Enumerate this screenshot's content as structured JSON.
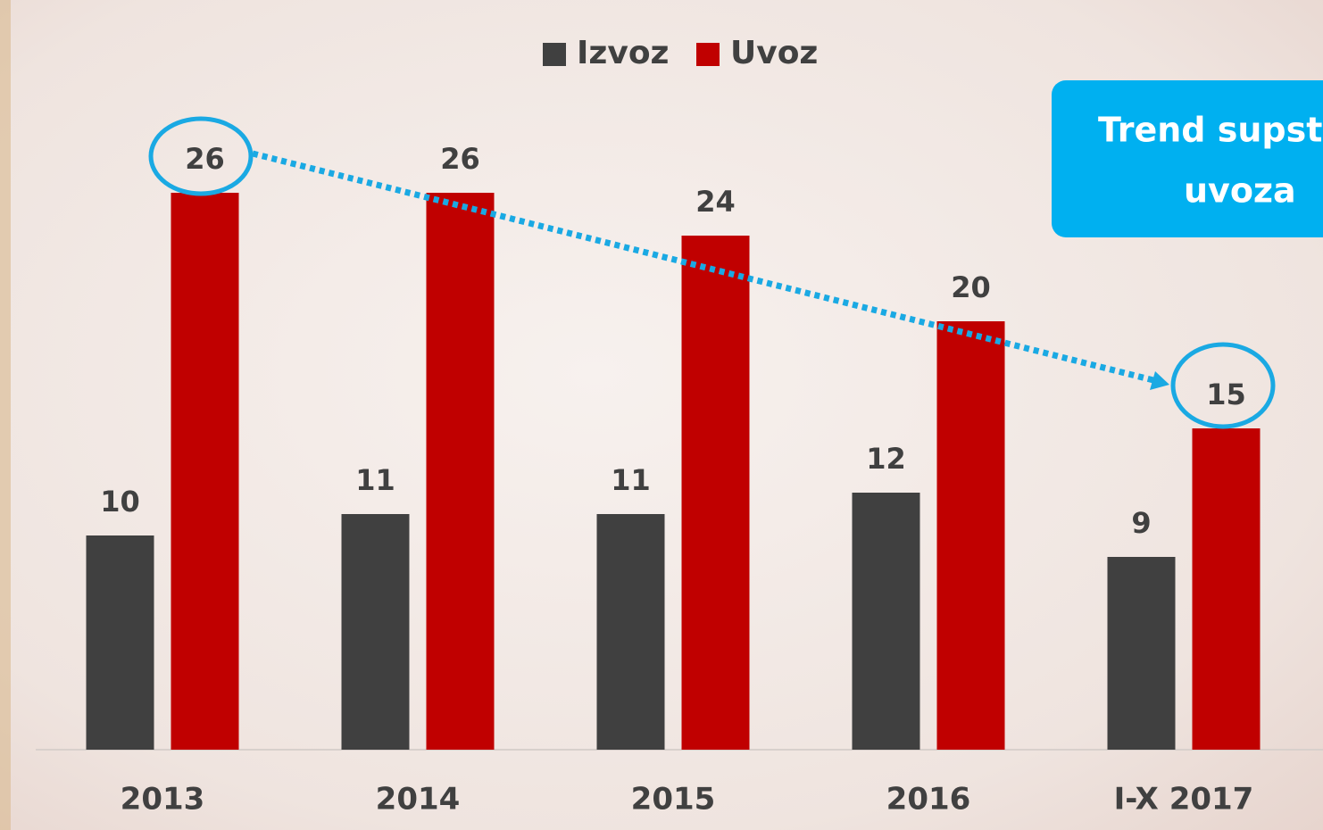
{
  "chart_data": {
    "type": "bar",
    "categories": [
      "2013",
      "2014",
      "2015",
      "2016",
      "I-X 2017"
    ],
    "series": [
      {
        "name": "Izvoz",
        "color": "#404040",
        "values": [
          10,
          11,
          11,
          12,
          9
        ]
      },
      {
        "name": "Uvoz",
        "color": "#c00000",
        "values": [
          26,
          26,
          24,
          20,
          15
        ]
      }
    ],
    "callout": [
      "Trend supst",
      "uvoza"
    ]
  }
}
